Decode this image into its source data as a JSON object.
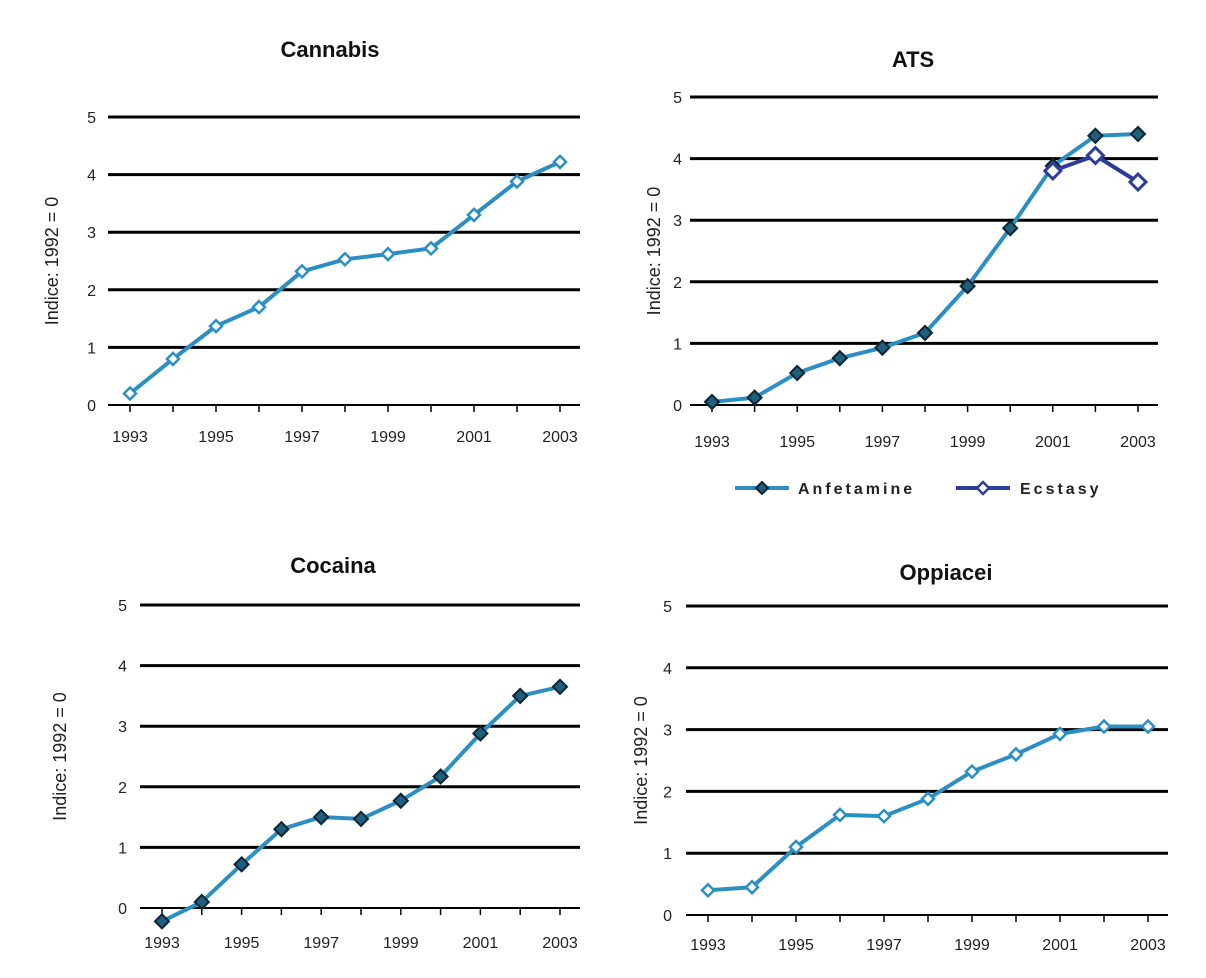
{
  "chart_data": [
    {
      "type": "line",
      "title": "Cannabis",
      "ylabel": "Indice: 1992 = 0",
      "xlabel": "",
      "ylim": [
        0,
        5
      ],
      "yticks": [
        "0",
        "1",
        "2",
        "3",
        "4",
        "5"
      ],
      "xticks": [
        "1993",
        "1995",
        "1997",
        "1999",
        "2001",
        "2003"
      ],
      "grid": true,
      "x": [
        1993,
        1994,
        1995,
        1996,
        1997,
        1998,
        1999,
        2000,
        2001,
        2002,
        2003
      ],
      "series": [
        {
          "values": [
            0.2,
            0.8,
            1.37,
            1.7,
            2.32,
            2.53,
            2.62,
            2.72,
            3.3,
            3.88,
            4.22
          ],
          "color": "#2c8fc4",
          "marker": "diamond"
        }
      ]
    },
    {
      "type": "line",
      "title": "ATS",
      "ylabel": "Indice: 1992 = 0",
      "xlabel": "",
      "ylim": [
        0,
        5
      ],
      "yticks": [
        "0",
        "1",
        "2",
        "3",
        "4",
        "5"
      ],
      "xticks": [
        "1993",
        "1995",
        "1997",
        "1999",
        "2001",
        "2003"
      ],
      "grid": true,
      "legend": "bottom",
      "x": [
        1993,
        1994,
        1995,
        1996,
        1997,
        1998,
        1999,
        2000,
        2001,
        2002,
        2003
      ],
      "series": [
        {
          "name": "Anfetamine",
          "values": [
            0.05,
            0.12,
            0.52,
            0.76,
            0.93,
            1.17,
            1.93,
            2.87,
            3.88,
            4.37,
            4.4
          ],
          "color": "#2c8fc4",
          "marker": "filled-diamond"
        },
        {
          "name": "Ecstasy",
          "x": [
            2001,
            2002,
            2003
          ],
          "values": [
            3.8,
            4.05,
            3.62
          ],
          "color": "#2e3c9a",
          "marker": "open-diamond"
        }
      ]
    },
    {
      "type": "line",
      "title": "Cocaina",
      "ylabel": "Indice: 1992 = 0",
      "xlabel": "",
      "ylim": [
        0,
        5
      ],
      "yticks": [
        "0",
        "1",
        "2",
        "3",
        "4",
        "5"
      ],
      "xticks": [
        "1993",
        "1995",
        "1997",
        "1999",
        "2001",
        "2003"
      ],
      "grid": true,
      "x": [
        1993,
        1994,
        1995,
        1996,
        1997,
        1998,
        1999,
        2000,
        2001,
        2002,
        2003
      ],
      "series": [
        {
          "values": [
            -0.22,
            0.1,
            0.72,
            1.3,
            1.5,
            1.47,
            1.77,
            2.17,
            2.88,
            3.5,
            3.65
          ],
          "color": "#2c8fc4",
          "marker": "filled-diamond"
        }
      ]
    },
    {
      "type": "line",
      "title": "Oppiacei",
      "ylabel": "Indice: 1992 = 0",
      "xlabel": "",
      "ylim": [
        0,
        5
      ],
      "yticks": [
        "0",
        "1",
        "2",
        "3",
        "4",
        "5"
      ],
      "xticks": [
        "1993",
        "1995",
        "1997",
        "1999",
        "2001",
        "2003"
      ],
      "grid": true,
      "x": [
        1993,
        1994,
        1995,
        1996,
        1997,
        1998,
        1999,
        2000,
        2001,
        2002,
        2003
      ],
      "series": [
        {
          "values": [
            0.4,
            0.45,
            1.1,
            1.62,
            1.6,
            1.88,
            2.32,
            2.6,
            2.93,
            3.05,
            3.05
          ],
          "color": "#2c8fc4",
          "marker": "diamond"
        }
      ]
    }
  ]
}
